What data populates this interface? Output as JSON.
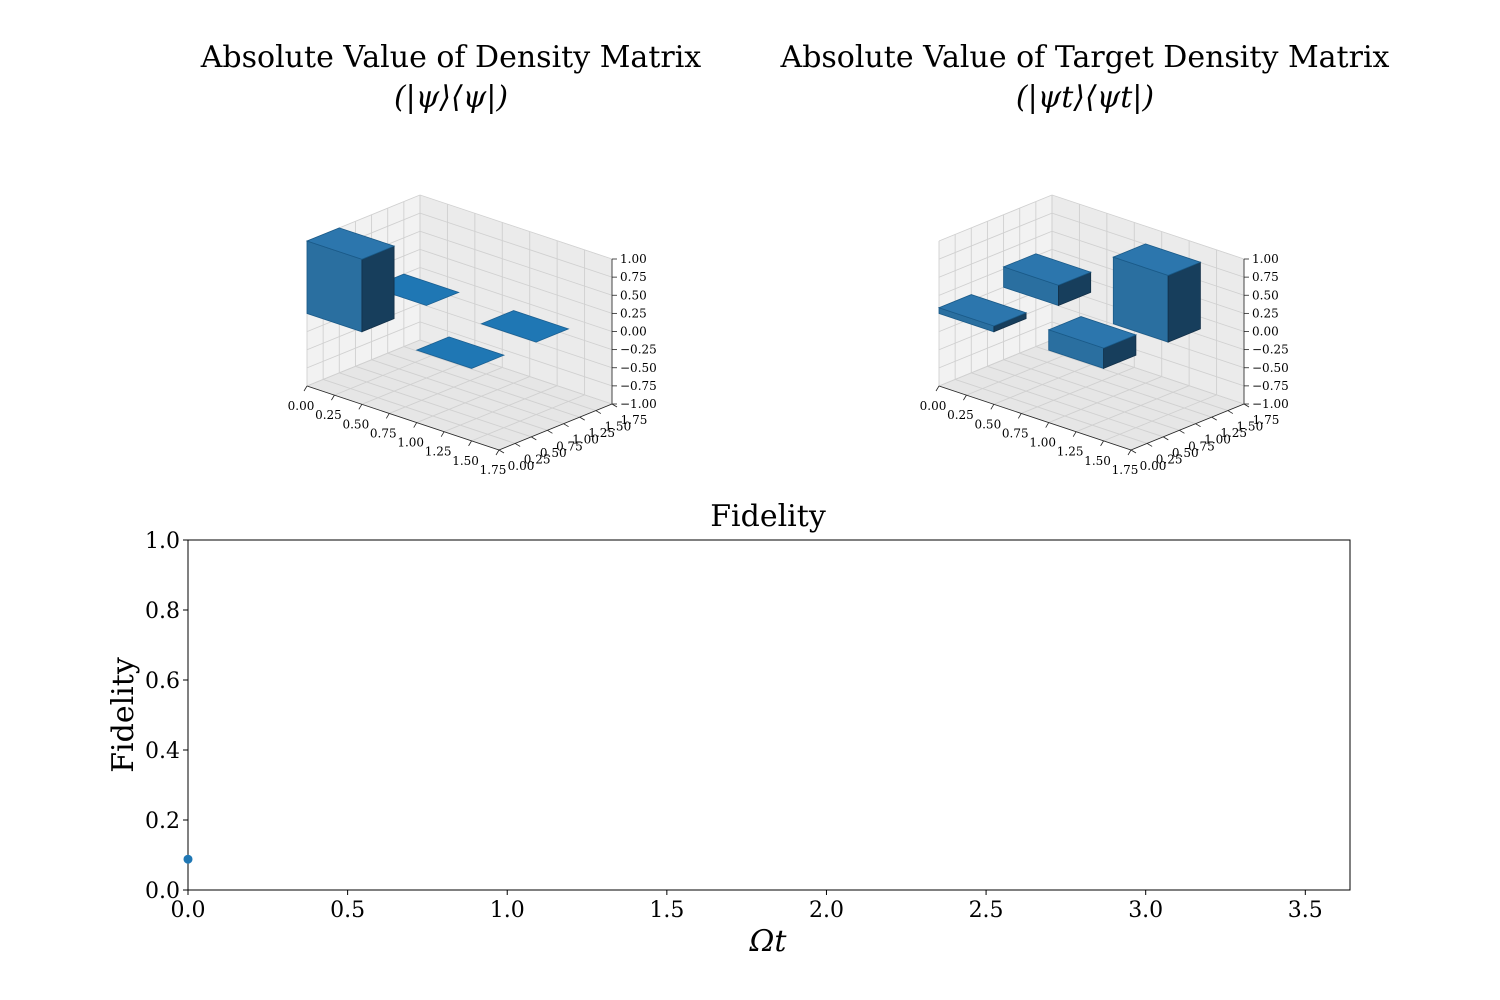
{
  "chart_data": [
    {
      "type": "bar3d",
      "title_line1": "Absolute Value of Density Matrix",
      "title_line2": "(|ψ⟩⟨ψ|)",
      "x_ticks": [
        "0.00",
        "0.25",
        "0.50",
        "0.75",
        "1.00",
        "1.25",
        "1.50",
        "1.75"
      ],
      "y_ticks": [
        "0.00",
        "0.25",
        "0.50",
        "0.75",
        "1.00",
        "1.25",
        "1.50",
        "1.75"
      ],
      "z_ticks": [
        "1.00",
        "0.75",
        "0.50",
        "0.25",
        "0.00",
        "−0.25",
        "−0.50",
        "−0.75",
        "−1.00"
      ],
      "xlim": [
        0,
        1.75
      ],
      "ylim": [
        0,
        1.75
      ],
      "zlim": [
        -1,
        1
      ],
      "bars": [
        {
          "x": 0,
          "y": 0,
          "value": 1.0
        },
        {
          "x": 0,
          "y": 1,
          "value": 0.0
        },
        {
          "x": 1,
          "y": 0,
          "value": 0.0
        },
        {
          "x": 1,
          "y": 1,
          "value": 0.0
        }
      ],
      "color": "#1f77b4"
    },
    {
      "type": "bar3d",
      "title_line1": "Absolute Value of Target Density Matrix",
      "title_line2": "(|ψt⟩⟨ψt|)",
      "x_ticks": [
        "0.00",
        "0.25",
        "0.50",
        "0.75",
        "1.00",
        "1.25",
        "1.50",
        "1.75"
      ],
      "y_ticks": [
        "0.00",
        "0.25",
        "0.50",
        "0.75",
        "1.00",
        "1.25",
        "1.50",
        "1.75"
      ],
      "z_ticks": [
        "1.00",
        "0.75",
        "0.50",
        "0.25",
        "0.00",
        "−0.25",
        "−0.50",
        "−0.75",
        "−1.00"
      ],
      "xlim": [
        0,
        1.75
      ],
      "ylim": [
        0,
        1.75
      ],
      "zlim": [
        -1,
        1
      ],
      "bars": [
        {
          "x": 0,
          "y": 0,
          "value": 0.08
        },
        {
          "x": 0,
          "y": 1,
          "value": 0.28
        },
        {
          "x": 1,
          "y": 0,
          "value": 0.28
        },
        {
          "x": 1,
          "y": 1,
          "value": 0.92
        }
      ],
      "color": "#1f77b4"
    },
    {
      "type": "scatter",
      "title": "Fidelity",
      "xlabel": "Ωt",
      "ylabel": "Fidelity",
      "xlim": [
        0,
        3.64
      ],
      "ylim": [
        0,
        1
      ],
      "x_ticks": [
        0.0,
        0.5,
        1.0,
        1.5,
        2.0,
        2.5,
        3.0,
        3.5
      ],
      "y_ticks": [
        0.0,
        0.2,
        0.4,
        0.6,
        0.8,
        1.0
      ],
      "points": [
        {
          "x": 0.0,
          "y": 0.088
        }
      ],
      "color": "#1f77b4"
    }
  ]
}
